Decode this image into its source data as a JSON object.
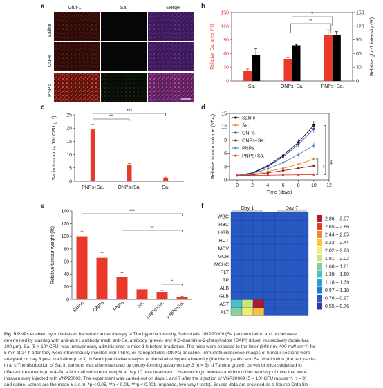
{
  "panels": {
    "a": {
      "letter": "a",
      "col_headers": [
        "Glut-1",
        "Sa.",
        "Merge"
      ],
      "row_labels": [
        "Saline",
        "ONPs",
        "PNPs"
      ]
    },
    "b": {
      "letter": "b"
    },
    "c": {
      "letter": "c"
    },
    "d": {
      "letter": "d"
    },
    "e": {
      "letter": "e"
    },
    "f": {
      "letter": "f",
      "rows": [
        "WBC",
        "RBC",
        "HGB",
        "HCT",
        "MCV",
        "MCH",
        "MCHC",
        "PLT",
        "TP",
        "ALB",
        "GLB",
        "AST",
        "ALT"
      ],
      "day_labels": [
        "Day 1",
        "Day 7"
      ],
      "legend": [
        "2.86 – 3.07",
        "2.65 – 2.86",
        "2.44 – 2.65",
        "2.23 – 2.44",
        "2.02 – 2.23",
        "1.81 – 2.02",
        "1.60 – 1.81",
        "1.39 – 1.60",
        "1.18 – 1.39",
        "0.97 – 1.18",
        "0.76 – 0.97",
        "0.55 – 0.76"
      ],
      "legend_colors": [
        "#b2182b",
        "#d6432b",
        "#f08a2c",
        "#f9c33c",
        "#f4ec6b",
        "#c7e77a",
        "#86d29a",
        "#4fbfc7",
        "#2c9fd8",
        "#1f7ccd",
        "#2858c2",
        "#2f3aa8"
      ],
      "grid_colors": [
        [
          "#2858c2",
          "#2858c2",
          "#2858c2",
          "#2858c2",
          "#2858c2",
          "#2858c2",
          "#2858c2"
        ],
        [
          "#2858c2",
          "#2858c2",
          "#2858c2",
          "#2858c2",
          "#2858c2",
          "#2858c2",
          "#2858c2"
        ],
        [
          "#2858c2",
          "#2858c2",
          "#2858c2",
          "#2858c2",
          "#2858c2",
          "#2858c2",
          "#2858c2"
        ],
        [
          "#2858c2",
          "#2858c2",
          "#2858c2",
          "#2858c2",
          "#2858c2",
          "#2858c2",
          "#2858c2"
        ],
        [
          "#2858c2",
          "#2858c2",
          "#2858c2",
          "#2858c2",
          "#2858c2",
          "#2858c2",
          "#2858c2"
        ],
        [
          "#2858c2",
          "#2858c2",
          "#2858c2",
          "#2858c2",
          "#2858c2",
          "#2858c2",
          "#2858c2"
        ],
        [
          "#2858c2",
          "#2858c2",
          "#2858c2",
          "#2858c2",
          "#2858c2",
          "#2858c2",
          "#2858c2"
        ],
        [
          "#2858c2",
          "#2858c2",
          "#2858c2",
          "#2858c2",
          "#2858c2",
          "#2858c2",
          "#2858c2"
        ],
        [
          "#2858c2",
          "#2858c2",
          "#2858c2",
          "#2858c2",
          "#2858c2",
          "#2858c2",
          "#2858c2"
        ],
        [
          "#2858c2",
          "#2858c2",
          "#2858c2",
          "#2858c2",
          "#2858c2",
          "#2858c2",
          "#2858c2"
        ],
        [
          "#2858c2",
          "#2858c2",
          "#2858c2",
          "#2858c2",
          "#2858c2",
          "#2858c2",
          "#2858c2"
        ],
        [
          "#4fbfc7",
          "#c7e77a",
          "#b2182b",
          "#2858c2",
          "#2858c2",
          "#2858c2",
          "#2858c2"
        ],
        [
          "#86d29a",
          "#f4ec6b",
          "#f9c33c",
          "#2858c2",
          "#2858c2",
          "#2858c2",
          "#2858c2"
        ]
      ]
    }
  },
  "chart_data": [
    {
      "type": "bar",
      "panel": "b",
      "categories": [
        "Sa.",
        "ONPs+Sa.",
        "PNPs+Sa."
      ],
      "ylabel": "Relative Sa. area (%)",
      "ylabel_right": "Relative glut-1 intensity (%)",
      "ylim": [
        0,
        150
      ],
      "ylim_right": [
        0,
        150
      ],
      "yticks": [
        0,
        30,
        60,
        90,
        120,
        150
      ],
      "series": [
        {
          "name": "Relative Sa. area (%)",
          "color": "#e8392a",
          "values": [
            22,
            47,
            100
          ],
          "errors": [
            4,
            4,
            12
          ]
        },
        {
          "name": "Relative glut-1 intensity (%)",
          "color": "#000000",
          "values": [
            57,
            78,
            100
          ],
          "errors": [
            14,
            2,
            8
          ]
        }
      ],
      "significance": [
        "*",
        "**"
      ]
    },
    {
      "type": "bar",
      "panel": "c",
      "categories": [
        "PNPs+Sa.",
        "ONPs+Sa.",
        "Sa."
      ],
      "values": [
        19.5,
        6.2,
        1.3
      ],
      "errors": [
        1.8,
        0.5,
        0.2
      ],
      "ylabel": "Sa. in tumour (× 10⁵ CFU g⁻¹)",
      "ylim": [
        0,
        25
      ],
      "yticks": [
        0,
        5,
        10,
        15,
        20,
        25
      ],
      "significance": [
        "**",
        "***"
      ]
    },
    {
      "type": "line",
      "panel": "d",
      "x": [
        0,
        2,
        4,
        6,
        8,
        10
      ],
      "xticks": [
        0,
        2,
        4,
        6,
        8,
        10,
        12
      ],
      "xlabel": "Time (days)",
      "ylabel": "Relative tumour volume (V/V₀)",
      "xlim": [
        -1,
        12
      ],
      "ylim": [
        0,
        15
      ],
      "yticks": [
        0,
        3,
        6,
        9,
        12,
        15
      ],
      "series": [
        {
          "name": "Saline",
          "color": "#000000",
          "values": [
            1,
            1.6,
            3.2,
            5.5,
            8.5,
            12.3
          ]
        },
        {
          "name": "Sa.",
          "color": "#f08a2c",
          "values": [
            1,
            1.2,
            1.9,
            2.6,
            3.5,
            4.7
          ]
        },
        {
          "name": "ONPs",
          "color": "#2a3fa8",
          "values": [
            1,
            1.5,
            3.0,
            5.2,
            8.0,
            11.5
          ]
        },
        {
          "name": "ONPs+Sa.",
          "color": "#8b1e1e",
          "values": [
            1,
            1.1,
            1.6,
            2.1,
            2.6,
            3.2
          ]
        },
        {
          "name": "PNPs",
          "color": "#4a82c8",
          "values": [
            1,
            1.4,
            2.5,
            3.9,
            5.7,
            7.8
          ]
        },
        {
          "name": "PNPs+Sa.",
          "color": "#e8392a",
          "values": [
            1,
            1.0,
            1.05,
            1.1,
            1.15,
            1.2
          ]
        }
      ],
      "significance": [
        "**",
        "***"
      ]
    },
    {
      "type": "bar",
      "panel": "e",
      "categories": [
        "Saline",
        "ONPs",
        "PNPs",
        "Sa.",
        "ONPs+Sa.",
        "PNPs+Sa."
      ],
      "values": [
        100,
        66,
        36,
        16,
        12,
        4
      ],
      "errors": [
        8,
        8,
        6,
        2,
        2,
        1
      ],
      "ylabel": "Relative tumour weight (%)",
      "ylim": [
        0,
        140
      ],
      "yticks": [
        0,
        20,
        40,
        60,
        80,
        100,
        120,
        140
      ],
      "significance": [
        "***",
        "**",
        "*"
      ]
    }
  ],
  "caption": {
    "fig": "Fig. 5",
    "lines": [
      " PNPs enabled hypoxia-based bacterial cancer therapy. a The hypoxia intensity, Salmonella VNP20009 (Sa.) accumulation and nuclei were",
      "determined by staining with anti-glut-1 antibody (red), anti-Sa. antibody (green) and 4′,6-diamidino-2-phenylindole (DAPI) (blue), respectively (scale bar,",
      "100 μm). Sa. (5 × 10⁶ CFU) was intravenously administered to mice 1 h before irradiation. The mice were exposed to the laser (808 nm, 400 mW cm⁻²) for",
      "5 min at 24 h after they were intravenously injected with PNPs, oil nanoparticles (ONPs) or saline. Immunofluorescence images of tumour sections were",
      "analysed on day 3 post irradiation (n ≥ 3). b Semiquantitative analysis of the relative hypoxia intensity (the black y-axis) and Sa. distribution (the red y-axis)",
      "in a. c The distribution of Sa. in tumours was also measured by colony-forming assay on day 3 (n = 3). d Tumour growth curves of mice subjected to",
      "different treatments (n = 4–9). e Normalized tumour weight at day 10 post treatment. f Haematologic indexes and blood biochemistry of mice that were",
      "intravenously injected with VNP20009. The experiment was carried out on days 1 and 7 after the injection of VNP20009 (5 × 10⁶ CFU mouse⁻¹, n = 3)",
      "and saline. Values are the mean ± s.e.m. *p < 0.05, **p < 0.01, ***p < 0.001 (unpaired, two-way t tests). Source data are provided as a Source Data file"
    ]
  }
}
